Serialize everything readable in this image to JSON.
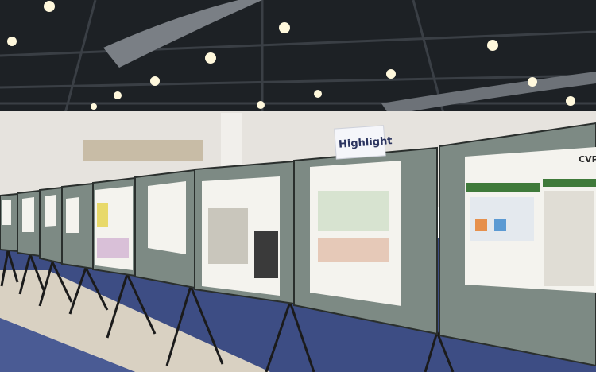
{
  "sign": {
    "label": "Highlight"
  },
  "poster": {
    "badge": "CVPR"
  }
}
